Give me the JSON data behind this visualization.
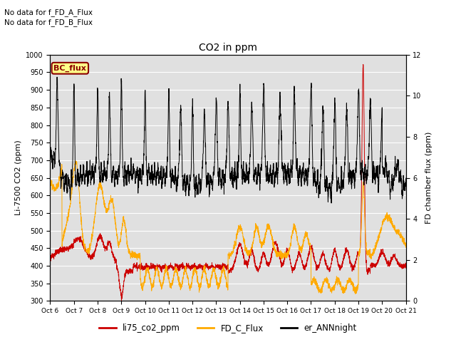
{
  "title": "CO2 in ppm",
  "ylabel_left": "Li-7500 CO2 (ppm)",
  "ylabel_right": "FD chamber flux (ppm)",
  "ylim_left": [
    300,
    1000
  ],
  "ylim_right": [
    0,
    12
  ],
  "yticks_left": [
    300,
    350,
    400,
    450,
    500,
    550,
    600,
    650,
    700,
    750,
    800,
    850,
    900,
    950,
    1000
  ],
  "yticks_right": [
    0,
    2,
    4,
    6,
    8,
    10,
    12
  ],
  "xticklabels": [
    "Oct 6",
    "Oct 7",
    "Oct 8",
    "Oct 9",
    "Oct 10",
    "Oct 11",
    "Oct 12",
    "Oct 13",
    "Oct 14",
    "Oct 15",
    "Oct 16",
    "Oct 17",
    "Oct 18",
    "Oct 19",
    "Oct 20",
    "Oct 21"
  ],
  "annotation1": "No data for f_FD_A_Flux",
  "annotation2": "No data for f_FD_B_Flux",
  "bc_flux_label": "BC_flux",
  "legend_labels": [
    "li75_co2_ppm",
    "FD_C_Flux",
    "er_ANNnight"
  ],
  "line_colors": [
    "#cc0000",
    "#ffaa00",
    "#000000"
  ],
  "bg_color": "#e0e0e0",
  "fig_bg": "#ffffff",
  "n_points": 3000,
  "days": 15
}
